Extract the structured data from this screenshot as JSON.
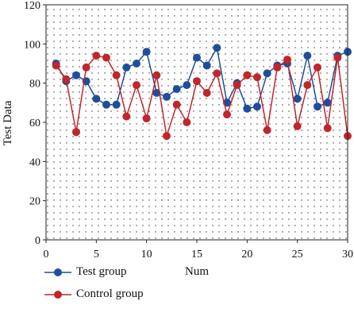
{
  "chart_data": {
    "type": "line",
    "title": "",
    "xlabel": "Num",
    "ylabel": "Test Data",
    "xlim": [
      0,
      30
    ],
    "ylim": [
      0,
      120
    ],
    "xticks": [
      "0",
      "5",
      "10",
      "15",
      "20",
      "25",
      "30"
    ],
    "yticks": [
      "0",
      "20",
      "40",
      "60",
      "80",
      "100",
      "120"
    ],
    "grid": "dotted",
    "legend_position": "bottom",
    "x": [
      1,
      2,
      3,
      4,
      5,
      6,
      7,
      8,
      9,
      10,
      11,
      12,
      13,
      14,
      15,
      16,
      17,
      18,
      19,
      20,
      21,
      22,
      23,
      24,
      25,
      26,
      27,
      28,
      29,
      30
    ],
    "series": [
      {
        "name": "Test group",
        "color": "#1f4e9a",
        "values": [
          90,
          81,
          84,
          81,
          72,
          69,
          69,
          88,
          90,
          96,
          75,
          73,
          77,
          79,
          93,
          89,
          98,
          70,
          80,
          67,
          68,
          85,
          89,
          90,
          72,
          94,
          68,
          70,
          94,
          96
        ]
      },
      {
        "name": "Control group",
        "color": "#c0262c",
        "values": [
          89,
          82,
          55,
          88,
          94,
          93,
          84,
          63,
          79,
          62,
          84,
          53,
          69,
          60,
          81,
          75,
          85,
          64,
          79,
          84,
          83,
          56,
          88,
          92,
          58,
          79,
          88,
          57,
          93,
          53
        ]
      }
    ]
  }
}
